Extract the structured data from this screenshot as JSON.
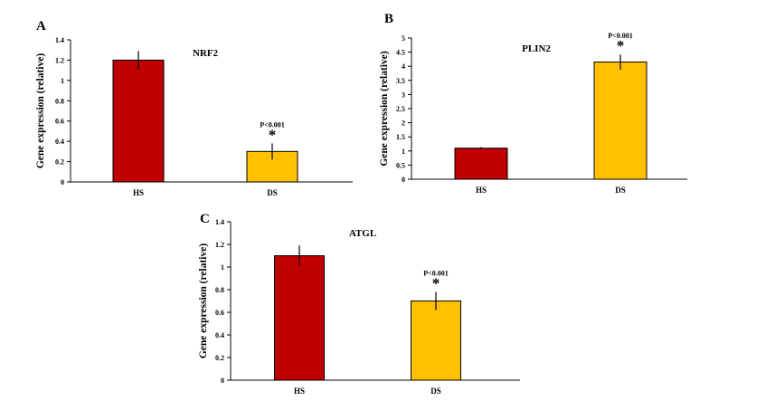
{
  "chart_data": [
    {
      "type": "bar",
      "panel_label": "A",
      "title": "NRF2",
      "ylabel": "Gene expression (relative)",
      "xlabel": "",
      "categories": [
        "HS",
        "DS"
      ],
      "values": [
        1.2,
        0.3
      ],
      "errors": [
        0.09,
        0.08
      ],
      "colors": [
        "#C00000",
        "#FFC000"
      ],
      "ylim": [
        0,
        1.4
      ],
      "yticks": [
        "0",
        "0.2",
        "0.4",
        "0.6",
        "0.8",
        "1",
        "1.2",
        "1.4"
      ],
      "annotation": {
        "category": "DS",
        "text": "P<0.001",
        "marker": "*"
      }
    },
    {
      "type": "bar",
      "panel_label": "B",
      "title": "PLIN2",
      "ylabel": "Gene expression (relative)",
      "xlabel": "",
      "categories": [
        "HS",
        "DS"
      ],
      "values": [
        1.1,
        4.15
      ],
      "errors": [
        0.04,
        0.27
      ],
      "colors": [
        "#C00000",
        "#FFC000"
      ],
      "ylim": [
        0,
        5
      ],
      "yticks": [
        "0",
        "0.5",
        "1",
        "1.5",
        "2",
        "2.5",
        "3",
        "3.5",
        "4",
        "4.5",
        "5"
      ],
      "annotation": {
        "category": "DS",
        "text": "P<0.001",
        "marker": "*"
      }
    },
    {
      "type": "bar",
      "panel_label": "C",
      "title": "ATGL",
      "ylabel": "Gene expression (relative)",
      "xlabel": "",
      "categories": [
        "HS",
        "DS"
      ],
      "values": [
        1.1,
        0.7
      ],
      "errors": [
        0.09,
        0.08
      ],
      "colors": [
        "#C00000",
        "#FFC000"
      ],
      "ylim": [
        0,
        1.4
      ],
      "yticks": [
        "0",
        "0.2",
        "0.4",
        "0.6",
        "0.8",
        "1",
        "1.2",
        "1.4"
      ],
      "annotation": {
        "category": "DS",
        "text": "P<0.001",
        "marker": "*"
      }
    }
  ]
}
